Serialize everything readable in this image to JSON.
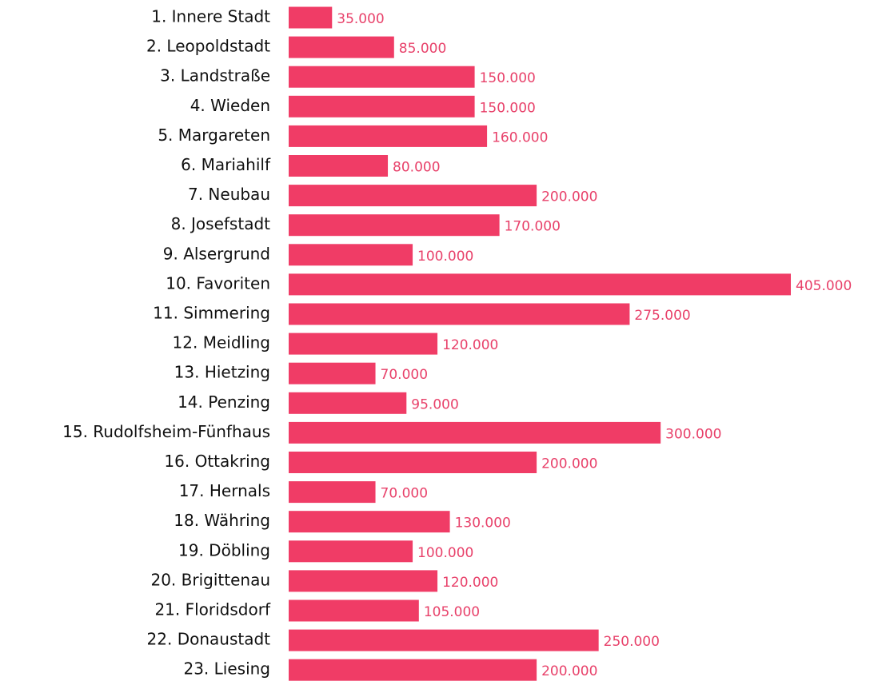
{
  "chart_data": {
    "type": "bar",
    "orientation": "horizontal",
    "color": "#f03c66",
    "categories": [
      "1. Innere Stadt",
      "2. Leopoldstadt",
      "3. Landstraße",
      "4. Wieden",
      "5. Margareten",
      "6. Mariahilf",
      "7. Neubau",
      "8. Josefstadt",
      "9. Alsergrund",
      "10. Favoriten",
      "11. Simmering",
      "12. Meidling",
      "13. Hietzing",
      "14. Penzing",
      "15. Rudolfsheim-Fünfhaus",
      "16. Ottakring",
      "17. Hernals",
      "18. Währing",
      "19. Döbling",
      "20. Brigittenau",
      "21. Floridsdorf",
      "22. Donaustadt",
      "23. Liesing"
    ],
    "values": [
      35000,
      85000,
      150000,
      150000,
      160000,
      80000,
      200000,
      170000,
      100000,
      405000,
      275000,
      120000,
      70000,
      95000,
      300000,
      200000,
      70000,
      130000,
      100000,
      120000,
      105000,
      250000,
      200000
    ],
    "value_labels": [
      "35.000",
      "85.000",
      "150.000",
      "150.000",
      "160.000",
      "80.000",
      "200.000",
      "170.000",
      "100.000",
      "405.000",
      "275.000",
      "120.000",
      "70.000",
      "95.000",
      "300.000",
      "200.000",
      "70.000",
      "130.000",
      "100.000",
      "120.000",
      "105.000",
      "250.000",
      "200.000"
    ]
  }
}
